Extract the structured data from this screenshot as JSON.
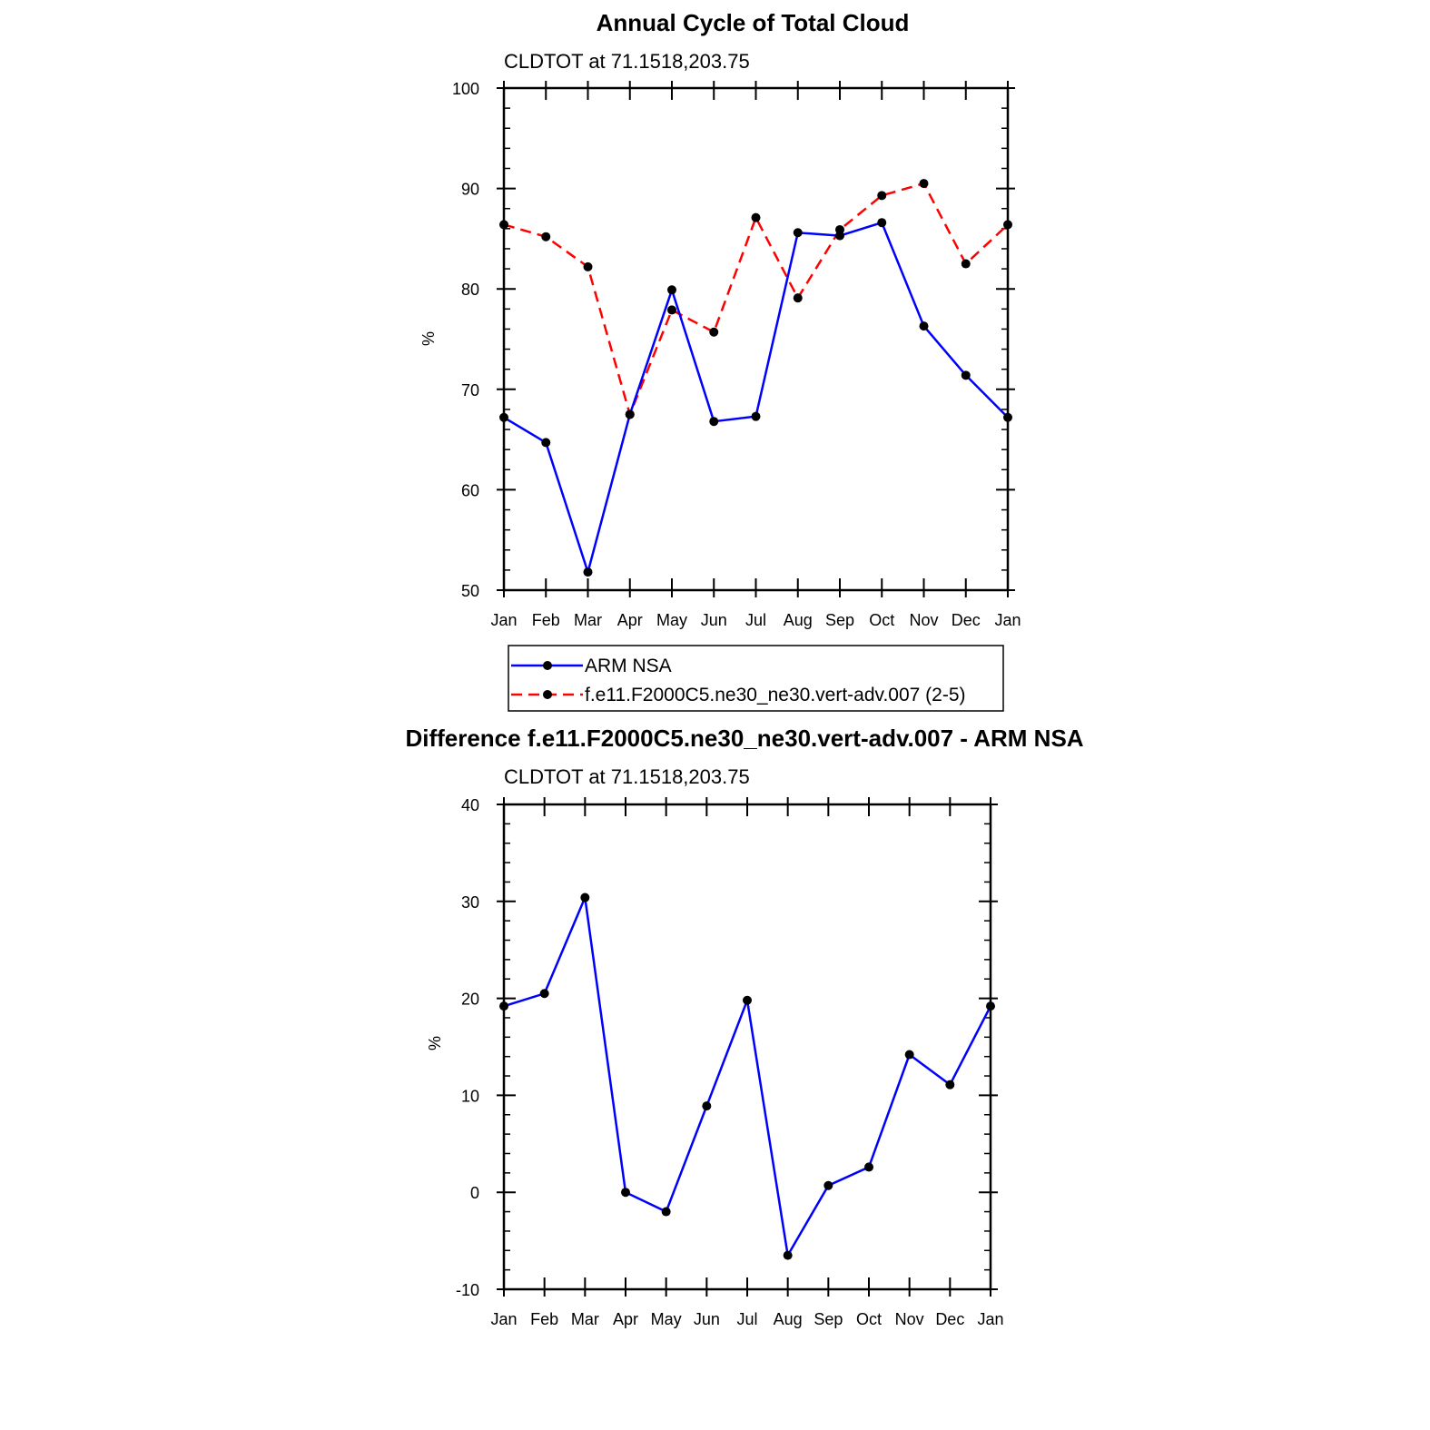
{
  "months": [
    "Jan",
    "Feb",
    "Mar",
    "Apr",
    "May",
    "Jun",
    "Jul",
    "Aug",
    "Sep",
    "Oct",
    "Nov",
    "Dec",
    "Jan"
  ],
  "chart_data": [
    {
      "type": "line",
      "title": "Annual Cycle of Total Cloud",
      "subtitle": "CLDTOT at 71.1518,203.75",
      "xlabel": "",
      "ylabel": "%",
      "ylim": [
        50,
        100
      ],
      "yticks": [
        50,
        60,
        70,
        80,
        90,
        100
      ],
      "grid": false,
      "categories": [
        "Jan",
        "Feb",
        "Mar",
        "Apr",
        "May",
        "Jun",
        "Jul",
        "Aug",
        "Sep",
        "Oct",
        "Nov",
        "Dec",
        "Jan"
      ],
      "series": [
        {
          "name": "ARM NSA",
          "color": "#0000ff",
          "dash": "solid",
          "values": [
            67.2,
            64.7,
            51.8,
            67.5,
            79.9,
            66.8,
            67.3,
            85.6,
            85.3,
            86.6,
            76.3,
            71.4,
            67.2
          ]
        },
        {
          "name": "f.e11.F2000C5.ne30_ne30.vert-adv.007 (2-5)",
          "color": "#ff0000",
          "dash": "dashed",
          "values": [
            86.4,
            85.2,
            82.2,
            67.5,
            77.9,
            75.7,
            87.1,
            79.1,
            85.9,
            89.3,
            90.5,
            82.5,
            86.4
          ]
        }
      ],
      "legend": {
        "placement": "below"
      }
    },
    {
      "type": "line",
      "title": "Difference f.e11.F2000C5.ne30_ne30.vert-adv.007 - ARM NSA",
      "subtitle": "CLDTOT at 71.1518,203.75",
      "xlabel": "",
      "ylabel": "%",
      "ylim": [
        -10,
        40
      ],
      "yticks": [
        -10,
        0,
        10,
        20,
        30,
        40
      ],
      "grid": false,
      "categories": [
        "Jan",
        "Feb",
        "Mar",
        "Apr",
        "May",
        "Jun",
        "Jul",
        "Aug",
        "Sep",
        "Oct",
        "Nov",
        "Dec",
        "Jan"
      ],
      "series": [
        {
          "color": "#0000ff",
          "dash": "solid",
          "values": [
            19.2,
            20.5,
            30.4,
            0.0,
            -2.0,
            8.9,
            19.8,
            -6.5,
            0.7,
            2.6,
            14.2,
            11.1,
            19.2
          ]
        }
      ]
    }
  ]
}
